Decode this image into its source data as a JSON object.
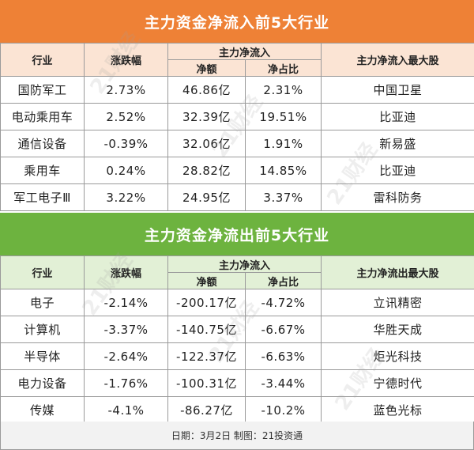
{
  "inflow": {
    "title": "主力资金净流入前5大行业",
    "headers": {
      "industry": "行业",
      "change": "涨跌幅",
      "group": "主力净流入",
      "net": "净额",
      "ratio": "净占比",
      "top_stock": "主力净流入最大股"
    },
    "rows": [
      {
        "industry": "国防军工",
        "change": "2.73%",
        "net": "46.86亿",
        "ratio": "2.31%",
        "stock": "中国卫星"
      },
      {
        "industry": "电动乘用车",
        "change": "2.52%",
        "net": "32.39亿",
        "ratio": "19.51%",
        "stock": "比亚迪"
      },
      {
        "industry": "通信设备",
        "change": "-0.39%",
        "net": "32.06亿",
        "ratio": "1.91%",
        "stock": "新易盛"
      },
      {
        "industry": "乘用车",
        "change": "0.24%",
        "net": "28.82亿",
        "ratio": "14.85%",
        "stock": "比亚迪"
      },
      {
        "industry": "军工电子Ⅲ",
        "change": "3.22%",
        "net": "24.95亿",
        "ratio": "3.37%",
        "stock": "雷科防务"
      }
    ]
  },
  "outflow": {
    "title": "主力资金净流出前5大行业",
    "headers": {
      "industry": "行业",
      "change": "涨跌幅",
      "group": "主力净流入",
      "net": "净额",
      "ratio": "净占比",
      "top_stock": "主力净流出最大股"
    },
    "rows": [
      {
        "industry": "电子",
        "change": "-2.14%",
        "net": "-200.17亿",
        "ratio": "-4.72%",
        "stock": "立讯精密"
      },
      {
        "industry": "计算机",
        "change": "-3.37%",
        "net": "-140.75亿",
        "ratio": "-6.67%",
        "stock": "华胜天成"
      },
      {
        "industry": "半导体",
        "change": "-2.64%",
        "net": "-122.37亿",
        "ratio": "-6.63%",
        "stock": "炬光科技"
      },
      {
        "industry": "电力设备",
        "change": "-1.76%",
        "net": "-100.31亿",
        "ratio": "-3.44%",
        "stock": "宁德时代"
      },
      {
        "industry": "传媒",
        "change": "-4.1%",
        "net": "-86.27亿",
        "ratio": "-10.2%",
        "stock": "蓝色光标"
      }
    ]
  },
  "footer": "日期：3月2日 制图：21投资通",
  "watermark": "21财经",
  "colors": {
    "inflow_banner": "#ee8136",
    "inflow_header": "#fbe4d4",
    "outflow_banner": "#6db33f",
    "outflow_header": "#e2f0d6"
  }
}
